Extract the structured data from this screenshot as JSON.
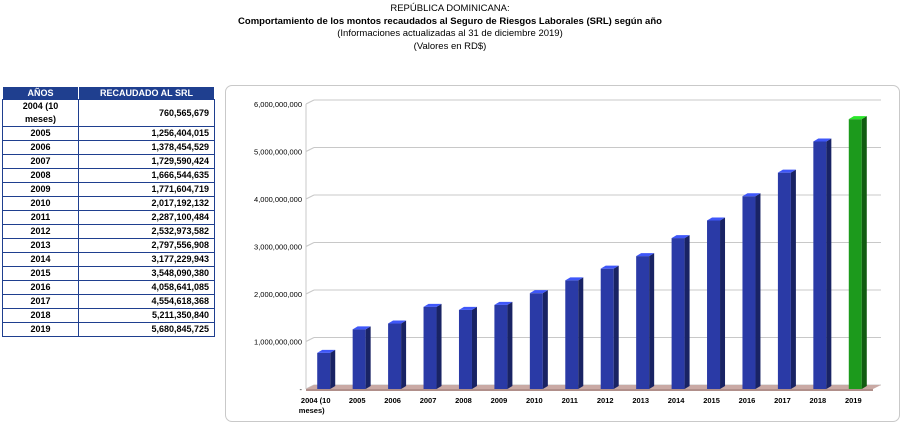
{
  "header": {
    "line1": "REPÚBLICA DOMINICANA:",
    "line2": "Comportamiento de los montos recaudados al Seguro de Riesgos Laborales (SRL) según año",
    "line3": "(Informaciones actualizadas al 31 de diciembre 2019)",
    "line4": "(Valores en RD$)"
  },
  "table": {
    "headers": [
      "AÑOS",
      "RECAUDADO AL SRL"
    ],
    "rows": [
      [
        "2004 (10 meses)",
        "760,565,679"
      ],
      [
        "2005",
        "1,256,404,015"
      ],
      [
        "2006",
        "1,378,454,529"
      ],
      [
        "2007",
        "1,729,590,424"
      ],
      [
        "2008",
        "1,666,544,635"
      ],
      [
        "2009",
        "1,771,604,719"
      ],
      [
        "2010",
        "2,017,192,132"
      ],
      [
        "2011",
        "2,287,100,484"
      ],
      [
        "2012",
        "2,532,973,582"
      ],
      [
        "2013",
        "2,797,556,908"
      ],
      [
        "2014",
        "3,177,229,943"
      ],
      [
        "2015",
        "3,548,090,380"
      ],
      [
        "2016",
        "4,058,641,085"
      ],
      [
        "2017",
        "4,554,618,368"
      ],
      [
        "2018",
        "5,211,350,840"
      ],
      [
        "2019",
        "5,680,845,725"
      ]
    ]
  },
  "colors": {
    "bar_default": "#2a3aa6",
    "bar_highlight": "#1c9a1c",
    "table_header_bg": "#1f3f8f",
    "floor": "#c9a9a4"
  },
  "chart_data": {
    "type": "bar",
    "categories": [
      "2004 (10 meses)",
      "2005",
      "2006",
      "2007",
      "2008",
      "2009",
      "2010",
      "2011",
      "2012",
      "2013",
      "2014",
      "2015",
      "2016",
      "2017",
      "2018",
      "2019"
    ],
    "values": [
      760565679,
      1256404015,
      1378454529,
      1729590424,
      1666544635,
      1771604719,
      2017192132,
      2287100484,
      2532973582,
      2797556908,
      3177229943,
      3548090380,
      4058641085,
      4554618368,
      5211350840,
      5680845725
    ],
    "yticks": [
      "-",
      "1,000,000,000",
      "2,000,000,000",
      "3,000,000,000",
      "4,000,000,000",
      "5,000,000,000",
      "6,000,000,000"
    ],
    "ylim": [
      0,
      6000000000
    ],
    "highlight_last": true,
    "grid": true,
    "chart_style": "3d"
  }
}
